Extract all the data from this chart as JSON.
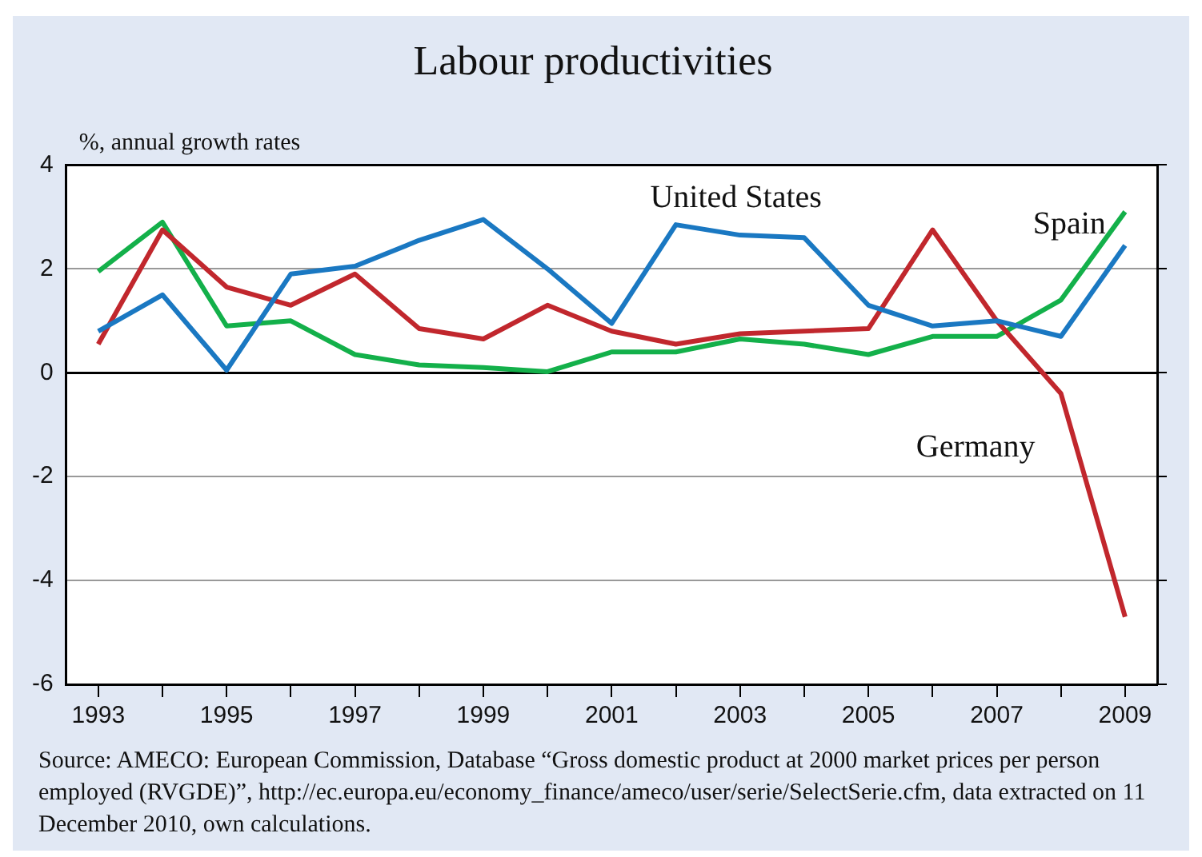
{
  "chart_data": {
    "type": "line",
    "title": "Labour productivities",
    "ylabel": "%, annual growth rates",
    "categories": [
      "1993",
      null,
      "1995",
      null,
      "1997",
      null,
      "1999",
      null,
      "2001",
      null,
      "2003",
      null,
      "2005",
      null,
      "2007",
      null,
      "2009"
    ],
    "series": [
      {
        "name": "United States",
        "color": "#1a78c2",
        "values": [
          0.8,
          1.5,
          0.05,
          1.9,
          2.05,
          2.55,
          2.95,
          2.0,
          0.95,
          2.85,
          2.65,
          2.6,
          1.3,
          0.9,
          1.0,
          0.7,
          2.45
        ]
      },
      {
        "name": "Germany",
        "color": "#c1272d",
        "values": [
          0.55,
          2.75,
          1.65,
          1.3,
          1.9,
          0.85,
          0.65,
          1.3,
          0.8,
          0.55,
          0.75,
          0.8,
          0.85,
          2.75,
          1.0,
          -0.4,
          -4.7
        ]
      },
      {
        "name": "Spain",
        "color": "#13b04a",
        "values": [
          1.95,
          2.9,
          0.9,
          1.0,
          0.35,
          0.15,
          0.1,
          0.02,
          0.4,
          0.4,
          0.65,
          0.55,
          0.35,
          0.7,
          0.7,
          1.4,
          3.1
        ]
      }
    ],
    "ylim": [
      -6,
      4
    ],
    "yticks": [
      -6,
      -4,
      -2,
      0,
      2,
      4
    ],
    "grid": "y",
    "legend": false,
    "marker": "none",
    "line_style": "solid",
    "annotations": [
      "Source: AMECO: European Commission, Database “Gross domestic product at 2000 market prices per person employed (RVGDE)”, http://ec.europa.eu/economy_finance/ameco/user/serie/SelectSerie.cfm, data extracted on 11 December 2010, own calculations."
    ]
  }
}
